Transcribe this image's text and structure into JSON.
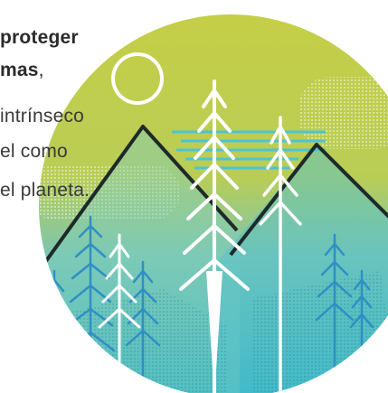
{
  "text_lines": [
    {
      "text": "proteger",
      "style": "bold"
    },
    {
      "bold": "mas",
      "rest": ","
    },
    {
      "text": "intrínseco",
      "style": "normal"
    },
    {
      "text": "el como",
      "style": "normal"
    },
    {
      "text": "el planeta.",
      "style": "normal"
    }
  ],
  "illustration": {
    "subject": "mountain-forest-landscape",
    "colors": {
      "sky_yellow": "#c8cd4a",
      "teal": "#3ab2c4",
      "light_teal": "#7fd0d6",
      "dark_line": "#1e2a2a",
      "white": "#ffffff",
      "blue_tree": "#2f8fc4"
    }
  }
}
